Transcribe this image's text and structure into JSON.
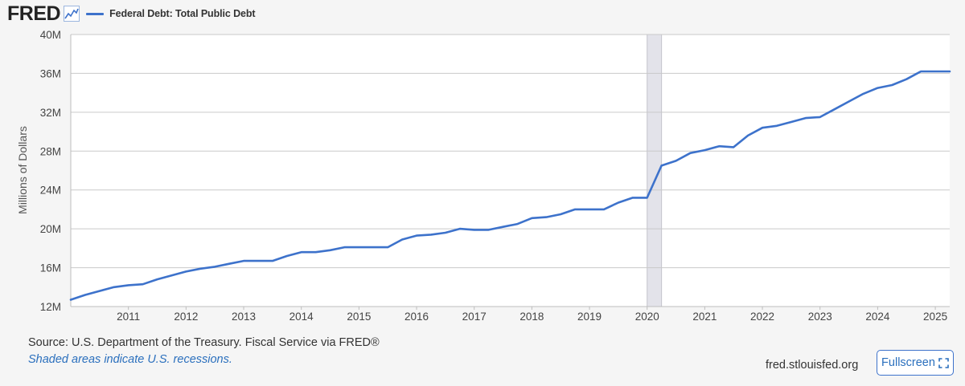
{
  "header": {
    "logo_text": "FRED",
    "logo_icon": "line-chart-icon",
    "legend_label": "Federal Debt: Total Public Debt"
  },
  "footer": {
    "source": "Source: U.S. Department of the Treasury. Fiscal Service via FRED®",
    "shaded_note": "Shaded areas indicate U.S. recessions.",
    "domain": "fred.stlouisfed.org",
    "fullscreen_label": "Fullscreen",
    "fullscreen_icon": "expand-icon"
  },
  "colors": {
    "series": "#3d72cb",
    "grid": "#c9c9c9",
    "recession": "#e3e3ea",
    "link": "#2a6fbd"
  },
  "chart_data": {
    "type": "line",
    "title": "Federal Debt: Total Public Debt",
    "ylabel": "Millions of Dollars",
    "xlabel": "",
    "ylim": [
      12000000,
      40000000
    ],
    "xlim": [
      2010.0,
      2025.25
    ],
    "y_ticks": [
      12000000,
      16000000,
      20000000,
      24000000,
      28000000,
      32000000,
      36000000,
      40000000
    ],
    "y_tick_labels": [
      "12M",
      "16M",
      "20M",
      "24M",
      "28M",
      "32M",
      "36M",
      "40M"
    ],
    "x_ticks": [
      2011,
      2012,
      2013,
      2014,
      2015,
      2016,
      2017,
      2018,
      2019,
      2020,
      2021,
      2022,
      2023,
      2024,
      2025
    ],
    "x_tick_labels": [
      "2011",
      "2012",
      "2013",
      "2014",
      "2015",
      "2016",
      "2017",
      "2018",
      "2019",
      "2020",
      "2021",
      "2022",
      "2023",
      "2024",
      "2025"
    ],
    "recessions": [
      {
        "start": 2020.0,
        "end": 2020.25
      }
    ],
    "grid": true,
    "series": [
      {
        "name": "Federal Debt: Total Public Debt",
        "x": [
          2010.0,
          2010.25,
          2010.5,
          2010.75,
          2011.0,
          2011.25,
          2011.5,
          2011.75,
          2012.0,
          2012.25,
          2012.5,
          2012.75,
          2013.0,
          2013.25,
          2013.5,
          2013.75,
          2014.0,
          2014.25,
          2014.5,
          2014.75,
          2015.0,
          2015.25,
          2015.5,
          2015.75,
          2016.0,
          2016.25,
          2016.5,
          2016.75,
          2017.0,
          2017.25,
          2017.5,
          2017.75,
          2018.0,
          2018.25,
          2018.5,
          2018.75,
          2019.0,
          2019.25,
          2019.5,
          2019.75,
          2020.0,
          2020.25,
          2020.5,
          2020.75,
          2021.0,
          2021.25,
          2021.5,
          2021.75,
          2022.0,
          2022.25,
          2022.5,
          2022.75,
          2023.0,
          2023.25,
          2023.5,
          2023.75,
          2024.0,
          2024.25,
          2024.5,
          2024.75,
          2025.0,
          2025.25
        ],
        "values": [
          12700000,
          13200000,
          13600000,
          14000000,
          14200000,
          14300000,
          14800000,
          15200000,
          15600000,
          15900000,
          16100000,
          16400000,
          16700000,
          16700000,
          16700000,
          17200000,
          17600000,
          17600000,
          17800000,
          18100000,
          18100000,
          18100000,
          18100000,
          18900000,
          19300000,
          19400000,
          19600000,
          20000000,
          19900000,
          19900000,
          20200000,
          20500000,
          21100000,
          21200000,
          21500000,
          22000000,
          22000000,
          22000000,
          22700000,
          23200000,
          23200000,
          26500000,
          27000000,
          27800000,
          28100000,
          28500000,
          28400000,
          29600000,
          30400000,
          30600000,
          31000000,
          31400000,
          31500000,
          32300000,
          33100000,
          33900000,
          34500000,
          34800000,
          35400000,
          36200000,
          36200000,
          36200000
        ]
      }
    ]
  }
}
